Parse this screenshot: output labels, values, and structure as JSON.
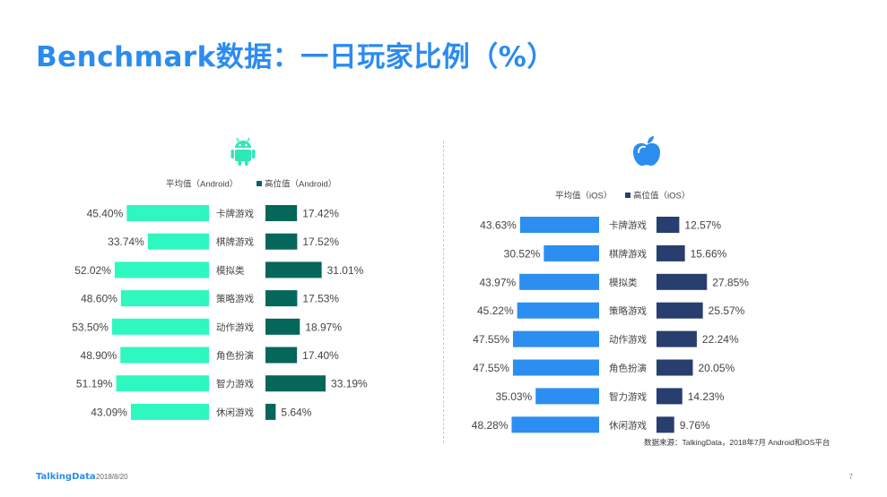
{
  "title": "Benchmark数据：一日玩家比例（%）",
  "footer": {
    "brand": "TalkingData",
    "date": "2018/8/20",
    "page": "7"
  },
  "source": "数据来源：TalkingData，2018年7月 Android和iOS平台",
  "colors": {
    "title": "#2b8cf0",
    "android_avg": "#2ef7c0",
    "android_high": "#05665a",
    "android_icon": "#2ee8b8",
    "ios_avg": "#2b8ef0",
    "ios_high": "#273e6e",
    "ios_icon": "#2b8ef0"
  },
  "chart_data": [
    {
      "type": "bar",
      "platform_icon": "android-icon",
      "categories": [
        "卡牌游戏",
        "棋牌游戏",
        "模拟类",
        "策略游戏",
        "动作游戏",
        "角色扮演",
        "智力游戏",
        "休闲游戏"
      ],
      "series": [
        {
          "name": "平均值（Android）",
          "values": [
            45.4,
            33.74,
            52.02,
            48.6,
            53.5,
            48.9,
            51.19,
            43.09
          ],
          "labels": [
            "45.40%",
            "33.74%",
            "52.02%",
            "48.60%",
            "53.50%",
            "48.90%",
            "51.19%",
            "43.09%"
          ]
        },
        {
          "name": "高位值（Android）",
          "values": [
            17.42,
            17.52,
            31.01,
            17.53,
            18.97,
            17.4,
            33.19,
            5.64
          ],
          "labels": [
            "17.42%",
            "17.52%",
            "31.01%",
            "17.53%",
            "18.97%",
            "17.40%",
            "33.19%",
            "5.64%"
          ]
        }
      ]
    },
    {
      "type": "bar",
      "platform_icon": "apple-icon",
      "categories": [
        "卡牌游戏",
        "棋牌游戏",
        "模拟类",
        "策略游戏",
        "动作游戏",
        "角色扮演",
        "智力游戏",
        "休闲游戏"
      ],
      "series": [
        {
          "name": "平均值（iOS）",
          "values": [
            43.63,
            30.52,
            43.97,
            45.22,
            47.55,
            47.55,
            35.03,
            48.28
          ],
          "labels": [
            "43.63%",
            "30.52%",
            "43.97%",
            "45.22%",
            "47.55%",
            "47.55%",
            "35.03%",
            "48.28%"
          ]
        },
        {
          "name": "高位值（iOS）",
          "values": [
            12.57,
            15.66,
            27.85,
            25.57,
            22.24,
            20.05,
            14.23,
            9.76
          ],
          "labels": [
            "12.57%",
            "15.66%",
            "27.85%",
            "25.57%",
            "22.24%",
            "20.05%",
            "14.23%",
            "9.76%"
          ]
        }
      ]
    }
  ]
}
